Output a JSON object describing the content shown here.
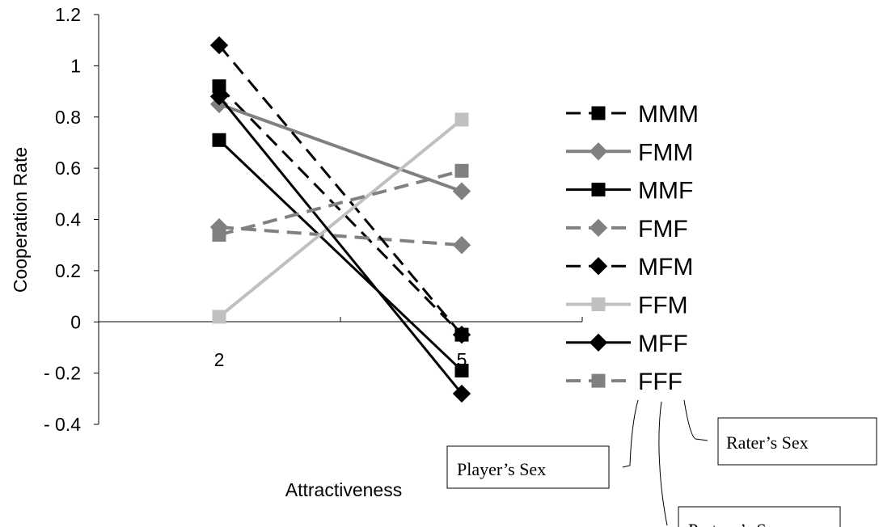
{
  "chart_data": {
    "type": "line",
    "title": "",
    "xlabel": "Attractiveness",
    "ylabel": "Cooperation Rate",
    "x": [
      "2",
      "5"
    ],
    "ylim": [
      -0.4,
      1.2
    ],
    "yticks": [
      "1.2",
      "1",
      "0.8",
      "0.6",
      "0.4",
      "0.2",
      "0",
      "- 0.2",
      "- 0.4"
    ],
    "ytick_values": [
      1.2,
      1.0,
      0.8,
      0.6,
      0.4,
      0.2,
      0.0,
      -0.2,
      -0.4
    ],
    "grid": false,
    "legend_position": "right",
    "series": [
      {
        "name": "MMM",
        "values": [
          0.92,
          -0.05
        ],
        "color": "#000000",
        "dash": "dashed",
        "marker": "square"
      },
      {
        "name": "FMM",
        "values": [
          0.85,
          0.51
        ],
        "color": "#808080",
        "dash": "solid",
        "marker": "diamond"
      },
      {
        "name": "MMF",
        "values": [
          0.71,
          -0.19
        ],
        "color": "#000000",
        "dash": "solid",
        "marker": "square"
      },
      {
        "name": "FMF",
        "values": [
          0.37,
          0.3
        ],
        "color": "#808080",
        "dash": "dashed",
        "marker": "diamond"
      },
      {
        "name": "MFM",
        "values": [
          1.08,
          -0.05
        ],
        "color": "#000000",
        "dash": "dashed",
        "marker": "diamond"
      },
      {
        "name": "FFM",
        "values": [
          0.02,
          0.79
        ],
        "color": "#c0c0c0",
        "dash": "solid",
        "marker": "square"
      },
      {
        "name": "MFF",
        "values": [
          0.88,
          -0.28
        ],
        "color": "#000000",
        "dash": "solid",
        "marker": "diamond"
      },
      {
        "name": "FFF",
        "values": [
          0.34,
          0.59
        ],
        "color": "#808080",
        "dash": "dashed",
        "marker": "square"
      }
    ],
    "annotations": [
      "Player’s Sex",
      "Partner’s Sex",
      "Rater’s Sex"
    ]
  }
}
